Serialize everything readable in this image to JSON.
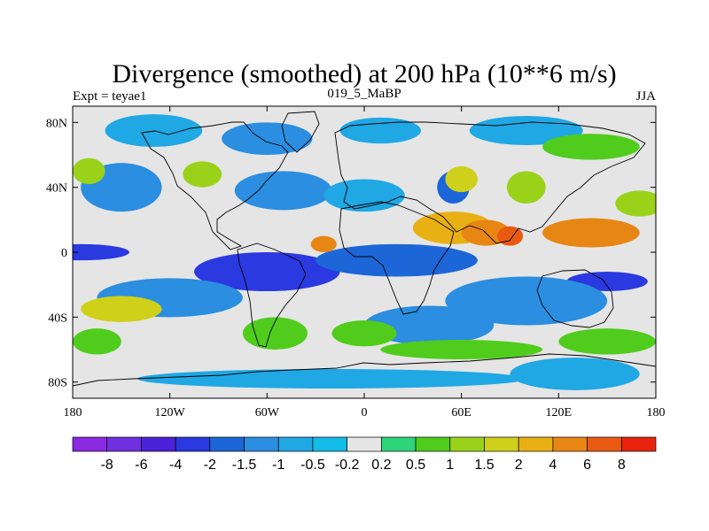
{
  "chart_data": {
    "type": "heatmap",
    "title": "Divergence (smoothed) at 200 hPa (10**6 m/s)",
    "subtitle_left": "Expt = teyae1",
    "subtitle_center": "019_5_MaBP",
    "subtitle_right": "JJA",
    "x_ticks": [
      "180",
      "120W",
      "60W",
      "0",
      "60E",
      "120E",
      "180"
    ],
    "x_tick_values": [
      -180,
      -120,
      -60,
      0,
      60,
      120,
      180
    ],
    "y_ticks": [
      "80N",
      "40N",
      "0",
      "40S",
      "80S"
    ],
    "y_tick_values": [
      80,
      40,
      0,
      -40,
      -80
    ],
    "xlim": [
      -180,
      180
    ],
    "ylim": [
      -90,
      90
    ],
    "colorbar_labels": [
      "-8",
      "-6",
      "-4",
      "-2",
      "-1.5",
      "-1",
      "-0.5",
      "-0.2",
      "0.2",
      "0.5",
      "1",
      "1.5",
      "2",
      "4",
      "6",
      "8"
    ],
    "colorbar_colors": [
      "#8a2be2",
      "#7030e0",
      "#4b22d8",
      "#2a39e0",
      "#1c66d8",
      "#2b8ee0",
      "#1fa8e4",
      "#12bce6",
      "#e5e5e5",
      "#2dd47a",
      "#50cc1c",
      "#9ad21a",
      "#cfd01a",
      "#e8b012",
      "#e88614",
      "#e85a12",
      "#e8240e"
    ],
    "field_regions": [
      {
        "lon": -130,
        "lat": 75,
        "rlon": 30,
        "rlat": 10,
        "level": "-0.5"
      },
      {
        "lon": -60,
        "lat": 70,
        "rlon": 28,
        "rlat": 10,
        "level": "-1"
      },
      {
        "lon": 10,
        "lat": 75,
        "rlon": 25,
        "rlat": 8,
        "level": "-0.5"
      },
      {
        "lon": 100,
        "lat": 75,
        "rlon": 35,
        "rlat": 9,
        "level": "-0.5"
      },
      {
        "lon": -150,
        "lat": 40,
        "rlon": 25,
        "rlat": 15,
        "level": "-1"
      },
      {
        "lon": -50,
        "lat": 38,
        "rlon": 30,
        "rlat": 12,
        "level": "-1"
      },
      {
        "lon": 0,
        "lat": 35,
        "rlon": 25,
        "rlat": 10,
        "level": "-0.5"
      },
      {
        "lon": 55,
        "lat": 40,
        "rlon": 10,
        "rlat": 10,
        "level": "-1.5"
      },
      {
        "lon": -175,
        "lat": 0,
        "rlon": 30,
        "rlat": 5,
        "level": "-2"
      },
      {
        "lon": -60,
        "lat": -12,
        "rlon": 45,
        "rlat": 12,
        "level": "-2"
      },
      {
        "lon": 20,
        "lat": -5,
        "rlon": 50,
        "rlat": 10,
        "level": "-1.5"
      },
      {
        "lon": 150,
        "lat": -18,
        "rlon": 25,
        "rlat": 6,
        "level": "-2"
      },
      {
        "lon": 100,
        "lat": -30,
        "rlon": 50,
        "rlat": 15,
        "level": "-1"
      },
      {
        "lon": -120,
        "lat": -28,
        "rlon": 45,
        "rlat": 12,
        "level": "-1"
      },
      {
        "lon": 40,
        "lat": -45,
        "rlon": 40,
        "rlat": 12,
        "level": "-1"
      },
      {
        "lon": -20,
        "lat": -78,
        "rlon": 120,
        "rlat": 6,
        "level": "-0.5"
      },
      {
        "lon": 130,
        "lat": -75,
        "rlon": 40,
        "rlat": 10,
        "level": "-0.5"
      },
      {
        "lon": 140,
        "lat": 65,
        "rlon": 30,
        "rlat": 8,
        "level": "0.5"
      },
      {
        "lon": -170,
        "lat": 50,
        "rlon": 10,
        "rlat": 8,
        "level": "1"
      },
      {
        "lon": -100,
        "lat": 48,
        "rlon": 12,
        "rlat": 8,
        "level": "1"
      },
      {
        "lon": 60,
        "lat": 45,
        "rlon": 10,
        "rlat": 8,
        "level": "1.5"
      },
      {
        "lon": 100,
        "lat": 40,
        "rlon": 12,
        "rlat": 10,
        "level": "1"
      },
      {
        "lon": 170,
        "lat": 30,
        "rlon": 15,
        "rlat": 8,
        "level": "1"
      },
      {
        "lon": 55,
        "lat": 15,
        "rlon": 25,
        "rlat": 10,
        "level": "2"
      },
      {
        "lon": 75,
        "lat": 12,
        "rlon": 15,
        "rlat": 8,
        "level": "4"
      },
      {
        "lon": 140,
        "lat": 12,
        "rlon": 30,
        "rlat": 9,
        "level": "4"
      },
      {
        "lon": -25,
        "lat": 5,
        "rlon": 8,
        "rlat": 5,
        "level": "4"
      },
      {
        "lon": 90,
        "lat": 10,
        "rlon": 8,
        "rlat": 6,
        "level": "6"
      },
      {
        "lon": -150,
        "lat": -35,
        "rlon": 25,
        "rlat": 8,
        "level": "1.5"
      },
      {
        "lon": -55,
        "lat": -50,
        "rlon": 20,
        "rlat": 10,
        "level": "0.5"
      },
      {
        "lon": 0,
        "lat": -50,
        "rlon": 20,
        "rlat": 8,
        "level": "0.5"
      },
      {
        "lon": 150,
        "lat": -55,
        "rlon": 30,
        "rlat": 8,
        "level": "0.5"
      },
      {
        "lon": 60,
        "lat": -60,
        "rlon": 50,
        "rlat": 6,
        "level": "0.5"
      },
      {
        "lon": -165,
        "lat": -55,
        "rlon": 15,
        "rlat": 8,
        "level": "0.5"
      }
    ]
  }
}
